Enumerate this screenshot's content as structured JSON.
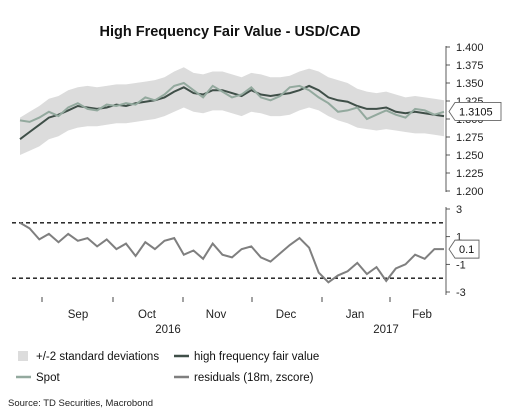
{
  "chart_data": [
    {
      "type": "line",
      "title": "High Frequency Fair Value - USD/CAD",
      "ylim": [
        1.2,
        1.4
      ],
      "y_ticks": [
        "1.400",
        "1.375",
        "1.350",
        "1.325",
        "1.300",
        "1.275",
        "1.250",
        "1.225",
        "1.200"
      ],
      "last_value_label": "1.3105",
      "grid": false,
      "band": {
        "name": "+/-2 standard deviations",
        "color": "#dcdcdc",
        "x": [
          0,
          5,
          10,
          15,
          20,
          25,
          30,
          35,
          40,
          45,
          50,
          55,
          60,
          65,
          70,
          75,
          80,
          85,
          90,
          95,
          100,
          105,
          110,
          115,
          120,
          125,
          130,
          135,
          140,
          145,
          150,
          155,
          160,
          165,
          170,
          175,
          180,
          185,
          190,
          195,
          200,
          205,
          210,
          215,
          220
        ],
        "upper": [
          1.302,
          1.31,
          1.318,
          1.328,
          1.332,
          1.34,
          1.344,
          1.346,
          1.344,
          1.346,
          1.348,
          1.348,
          1.35,
          1.352,
          1.354,
          1.358,
          1.366,
          1.372,
          1.364,
          1.362,
          1.366,
          1.366,
          1.362,
          1.358,
          1.364,
          1.362,
          1.358,
          1.358,
          1.36,
          1.366,
          1.37,
          1.366,
          1.358,
          1.354,
          1.35,
          1.342,
          1.338,
          1.336,
          1.338,
          1.334,
          1.33,
          1.332,
          1.33,
          1.328,
          1.326
        ],
        "lower": [
          1.25,
          1.256,
          1.262,
          1.272,
          1.276,
          1.284,
          1.288,
          1.29,
          1.29,
          1.292,
          1.294,
          1.294,
          1.296,
          1.298,
          1.3,
          1.304,
          1.31,
          1.316,
          1.31,
          1.308,
          1.312,
          1.312,
          1.308,
          1.304,
          1.31,
          1.308,
          1.304,
          1.304,
          1.306,
          1.312,
          1.316,
          1.312,
          1.304,
          1.298,
          1.294,
          1.288,
          1.286,
          1.284,
          1.286,
          1.284,
          1.282,
          1.28,
          1.28,
          1.278,
          1.276
        ]
      },
      "x": [
        0,
        5,
        10,
        15,
        20,
        25,
        30,
        35,
        40,
        45,
        50,
        55,
        60,
        65,
        70,
        75,
        80,
        85,
        90,
        95,
        100,
        105,
        110,
        115,
        120,
        125,
        130,
        135,
        140,
        145,
        150,
        155,
        160,
        165,
        170,
        175,
        180,
        185,
        190,
        195,
        200,
        205,
        210,
        215,
        220
      ],
      "series": [
        {
          "name": "high frequency fair value",
          "color": "#3f4f48",
          "values": [
            1.272,
            1.282,
            1.292,
            1.302,
            1.306,
            1.312,
            1.318,
            1.316,
            1.314,
            1.316,
            1.32,
            1.318,
            1.322,
            1.324,
            1.326,
            1.33,
            1.338,
            1.344,
            1.336,
            1.334,
            1.34,
            1.34,
            1.336,
            1.332,
            1.34,
            1.334,
            1.332,
            1.334,
            1.336,
            1.34,
            1.346,
            1.34,
            1.33,
            1.326,
            1.324,
            1.318,
            1.314,
            1.314,
            1.316,
            1.31,
            1.308,
            1.31,
            1.308,
            1.306,
            1.304
          ]
        },
        {
          "name": "Spot",
          "color": "#93a99e",
          "values": [
            1.298,
            1.296,
            1.302,
            1.31,
            1.304,
            1.316,
            1.322,
            1.314,
            1.312,
            1.32,
            1.318,
            1.322,
            1.32,
            1.33,
            1.326,
            1.334,
            1.346,
            1.35,
            1.34,
            1.33,
            1.346,
            1.338,
            1.33,
            1.334,
            1.344,
            1.33,
            1.326,
            1.332,
            1.344,
            1.346,
            1.34,
            1.33,
            1.322,
            1.31,
            1.312,
            1.316,
            1.3,
            1.306,
            1.312,
            1.306,
            1.302,
            1.314,
            1.312,
            1.306,
            1.31
          ]
        }
      ]
    },
    {
      "type": "line",
      "ylim": [
        -3,
        3
      ],
      "y_ticks": [
        "3",
        "1",
        "-1",
        "-3"
      ],
      "last_value_label": "0.1",
      "reference_lines": [
        2,
        -2
      ],
      "x_ticks": [
        "Sep",
        "Oct",
        "Nov",
        "Dec",
        "Jan",
        "Feb"
      ],
      "x_years": [
        "2016",
        "2017"
      ],
      "x": [
        0,
        5,
        10,
        15,
        20,
        25,
        30,
        35,
        40,
        45,
        50,
        55,
        60,
        65,
        70,
        75,
        80,
        85,
        90,
        95,
        100,
        105,
        110,
        115,
        120,
        125,
        130,
        135,
        140,
        145,
        150,
        155,
        160,
        165,
        170,
        175,
        180,
        185,
        190,
        195,
        200,
        205,
        210,
        215,
        220
      ],
      "series": [
        {
          "name": "residuals (18m, zscore)",
          "color": "#7f7f7f",
          "values": [
            2.0,
            1.6,
            0.8,
            1.2,
            0.6,
            1.2,
            0.7,
            0.9,
            0.3,
            0.8,
            0.1,
            0.5,
            -0.4,
            0.6,
            0.1,
            0.7,
            0.9,
            -0.3,
            0.0,
            -0.6,
            0.5,
            -0.3,
            -0.5,
            0.1,
            0.3,
            -0.5,
            -0.8,
            -0.2,
            0.4,
            0.9,
            0.2,
            -1.6,
            -2.3,
            -1.8,
            -1.5,
            -0.9,
            -1.7,
            -1.2,
            -2.2,
            -1.3,
            -1.0,
            -0.3,
            -0.6,
            0.1,
            0.1
          ]
        }
      ]
    }
  ],
  "legend": [
    {
      "label": "+/-2 standard deviations",
      "kind": "band",
      "color": "#dcdcdc"
    },
    {
      "label": "high frequency fair value",
      "kind": "line",
      "color": "#3f4f48"
    },
    {
      "label": "Spot",
      "kind": "line",
      "color": "#93a99e"
    },
    {
      "label": "residuals (18m, zscore)",
      "kind": "line",
      "color": "#7f7f7f"
    }
  ],
  "source": "Source: TD Securities, Macrobond"
}
